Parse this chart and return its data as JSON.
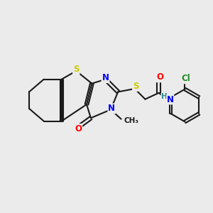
{
  "bg_color": "#ebebeb",
  "bond_color": "#1a1a1a",
  "bond_width": 1.5,
  "atom_colors": {
    "S": "#cccc00",
    "N": "#0000ff",
    "O": "#ff0000",
    "Cl": "#228b22",
    "H": "#2e8b8b",
    "C": "#1a1a1a"
  },
  "font_size_atom": 8.5,
  "font_size_small": 7.5
}
